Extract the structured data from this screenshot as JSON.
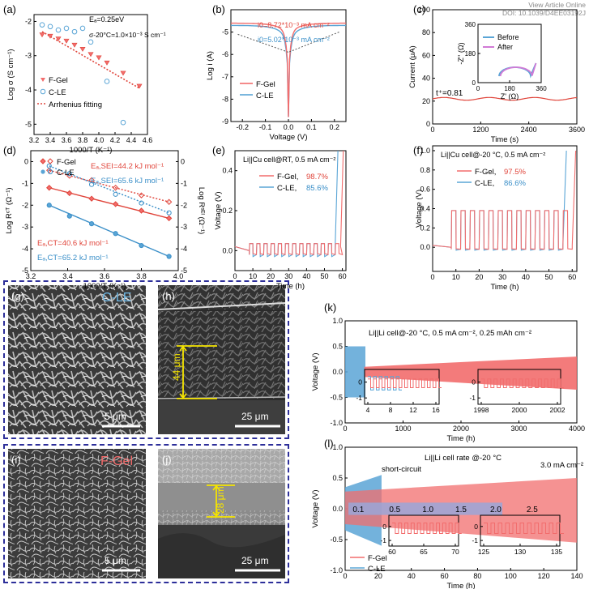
{
  "header": {
    "line1": "View Article Online",
    "line2": "DOI: 10.1039/D4EE03192J"
  },
  "colors": {
    "fgel": "#f26d6d",
    "cle": "#5aa5d6",
    "red_dark": "#e0443a",
    "blue_dark": "#3a8fc8",
    "frame": "#2d2f9a",
    "dash_red": "#e0443a"
  },
  "chart_data": [
    {
      "panel": "(a)",
      "type": "scatter",
      "xlabel": "1000/T (K⁻¹)",
      "ylabel": "Log σ (S cm⁻¹)",
      "xlim": [
        3.2,
        4.6
      ],
      "ylim": [
        -5.3,
        -1.8
      ],
      "xticks": [
        "3.2",
        "3.4",
        "3.6",
        "3.8",
        "4.0",
        "4.2",
        "4.4",
        "4.6"
      ],
      "yticks": [
        "-2",
        "-3",
        "-4",
        "-5"
      ],
      "series": [
        {
          "name": "F-Gel",
          "x": [
            3.3,
            3.4,
            3.5,
            3.6,
            3.7,
            3.8,
            3.9,
            4.0,
            4.1,
            4.3,
            4.5
          ],
          "y": [
            -2.38,
            -2.42,
            -2.5,
            -2.56,
            -2.68,
            -2.8,
            -2.95,
            -3.05,
            -3.2,
            -3.5,
            -3.88
          ]
        },
        {
          "name": "C-LE",
          "x": [
            3.3,
            3.4,
            3.5,
            3.6,
            3.7,
            3.8,
            3.9,
            4.1,
            4.3
          ],
          "y": [
            -2.1,
            -2.15,
            -2.25,
            -2.2,
            -2.3,
            -2.2,
            -2.6,
            -3.75,
            -4.95
          ]
        },
        {
          "name": "Arrhenius fitting",
          "x": [
            3.3,
            4.5
          ],
          "y": [
            -2.3,
            -3.95
          ]
        }
      ],
      "annotations": [
        "Eₐ=0.25eV",
        "σ-20°C=1.0×10⁻³ S cm⁻¹"
      ]
    },
    {
      "panel": "(b)",
      "type": "line",
      "xlabel": "Voltage (V)",
      "ylabel": "Log i (A)",
      "xlim": [
        -0.25,
        0.25
      ],
      "ylim": [
        -9,
        -4
      ],
      "xticks": [
        "-0.2",
        "-0.1",
        "0.0",
        "0.1",
        "0.2"
      ],
      "yticks": [
        "-5",
        "-6",
        "-7",
        "-8",
        "-9"
      ],
      "series": [
        {
          "name": "F-Gel"
        },
        {
          "name": "C-LE"
        }
      ],
      "annotations": [
        "i0=8.72*10⁻³ mA cm⁻²",
        "i0=5.02*10⁻³ mA cm⁻²"
      ]
    },
    {
      "panel": "(c)",
      "type": "line",
      "xlabel": "Time (s)",
      "ylabel": "Current (μA)",
      "xlim": [
        0,
        3600
      ],
      "ylim": [
        0,
        100
      ],
      "xticks": [
        "0",
        "1200",
        "2400",
        "3600"
      ],
      "yticks": [
        "0",
        "20",
        "40",
        "60",
        "80",
        "100"
      ],
      "series": [
        {
          "name": "current",
          "steady": 22
        }
      ],
      "annotations": [
        "t⁺=0.81"
      ],
      "inset": {
        "xlabel": "Z' (Ω)",
        "ylabel": "-Z'' (Ω)",
        "xticks": [
          "0",
          "180",
          "360"
        ],
        "yticks": [
          "0",
          "180",
          "360"
        ],
        "legend": [
          "Before",
          "After"
        ]
      }
    },
    {
      "panel": "(d)",
      "type": "line",
      "xlabel": "1000/T (K⁻¹)",
      "ylabel_left": "Log Rᶜᵀ (Ω⁻¹)",
      "ylabel_right": "Log Rˢᴱᴵ (Ω⁻¹)",
      "xlim": [
        3.2,
        4.0
      ],
      "ylim_left": [
        -5,
        0.5
      ],
      "ylim_right": [
        -5,
        0.5
      ],
      "xticks": [
        "3.2",
        "3.4",
        "3.6",
        "3.8",
        "4.0"
      ],
      "yticks_left": [
        "0",
        "-1",
        "-2",
        "-3",
        "-4",
        "-5"
      ],
      "yticks_right": [
        "0",
        "-1",
        "-2",
        "-3",
        "-4",
        "-5"
      ],
      "series": [
        {
          "name": "F-Gel",
          "x": [
            3.3,
            3.41,
            3.53,
            3.66,
            3.8,
            3.95
          ],
          "y": [
            -1.2,
            -1.45,
            -1.7,
            -1.95,
            -2.25,
            -2.6
          ]
        },
        {
          "name": "C-LE",
          "x": [
            3.3,
            3.41,
            3.53,
            3.66,
            3.8,
            3.95
          ],
          "y": [
            -2.0,
            -2.5,
            -2.85,
            -3.3,
            -3.85,
            -4.35
          ]
        },
        {
          "name": "F-Gel SEI",
          "x": [
            3.3,
            3.41,
            3.53,
            3.66,
            3.8,
            3.95
          ],
          "y": [
            -0.4,
            -0.65,
            -0.85,
            -1.2,
            -1.55,
            -1.85
          ]
        },
        {
          "name": "C-LE SEI",
          "x": [
            3.3,
            3.41,
            3.53,
            3.66,
            3.8,
            3.95
          ],
          "y": [
            -0.2,
            -0.55,
            -1.05,
            -1.5,
            -1.9,
            -2.35
          ]
        }
      ],
      "annotations": [
        "Eₐ,SEI=44.2 kJ mol⁻¹",
        "Eₐ,SEI=65.6 kJ mol⁻¹",
        "Eₐ,CT=40.6 kJ mol⁻¹",
        "Eₐ,CT=65.2 kJ mol⁻¹"
      ]
    },
    {
      "panel": "(e)",
      "type": "line",
      "title": "Li||Cu cell@RT, 0.5 mA cm⁻²",
      "xlabel": "Time (h)",
      "ylabel": "Voltage (V)",
      "xlim": [
        0,
        62
      ],
      "ylim": [
        -0.1,
        0.5
      ],
      "xticks": [
        "0",
        "10",
        "20",
        "30",
        "40",
        "50",
        "60"
      ],
      "yticks": [
        "0.0",
        "0.2",
        "0.4"
      ],
      "series": [
        {
          "name": "F-Gel",
          "efficiency": "98.7%"
        },
        {
          "name": "C-LE",
          "efficiency": "85.6%"
        }
      ]
    },
    {
      "panel": "(f)",
      "type": "line",
      "title": "Li||Cu cell@-20 °C, 0.5 mA cm⁻²",
      "xlabel": "Time (h)",
      "ylabel": "Voltage (V)",
      "xlim": [
        0,
        62
      ],
      "ylim": [
        -0.25,
        1.05
      ],
      "xticks": [
        "0",
        "10",
        "20",
        "30",
        "40",
        "50",
        "60"
      ],
      "yticks": [
        "0.0",
        "0.2",
        "0.4",
        "0.6",
        "0.8",
        "1.0"
      ],
      "series": [
        {
          "name": "F-Gel",
          "efficiency": "97.5%"
        },
        {
          "name": "C-LE",
          "efficiency": "86.6%"
        }
      ]
    },
    {
      "panel": "(k)",
      "type": "line",
      "title": "Li||Li cell@-20 °C, 0.5 mA cm⁻², 0.25 mAh cm⁻²",
      "xlabel": "Time (h)",
      "ylabel": "Voltage (V)",
      "xlim": [
        0,
        4000
      ],
      "ylim": [
        -1.0,
        1.0
      ],
      "xticks": [
        "0",
        "1000",
        "2000",
        "3000",
        "4000"
      ],
      "yticks": [
        "1.0",
        "0.5",
        "0.0",
        "-0.5",
        "-1.0"
      ],
      "inset1": {
        "xticks": [
          "4",
          "8",
          "12",
          "16"
        ],
        "yticks": [
          "0",
          "-1"
        ]
      },
      "inset2": {
        "xticks": [
          "1998",
          "2000",
          "2002"
        ],
        "yticks": [
          "0",
          "-1"
        ]
      }
    },
    {
      "panel": "(l)",
      "type": "line",
      "title": "Li||Li cell rate @-20 °C",
      "xlabel": "Time (h)",
      "ylabel": "Voltage (V)",
      "xlim": [
        0,
        140
      ],
      "ylim": [
        -1.0,
        1.0
      ],
      "xticks": [
        "0",
        "20",
        "40",
        "60",
        "80",
        "100",
        "120",
        "140"
      ],
      "yticks": [
        "1.0",
        "0.5",
        "0.0",
        "-0.5",
        "-1.0"
      ],
      "rates": [
        "0.1",
        "0.5",
        "1.0",
        "1.5",
        "2.0",
        "2.5"
      ],
      "annotations": [
        "short-circuit",
        "3.0 mA cm⁻²"
      ],
      "series": [
        {
          "name": "F-Gel"
        },
        {
          "name": "C-LE"
        }
      ],
      "inset1": {
        "xticks": [
          "60",
          "65",
          "70"
        ],
        "yticks": [
          "0",
          "-1"
        ]
      },
      "inset2": {
        "xticks": [
          "125",
          "130",
          "135"
        ],
        "yticks": [
          "0",
          "-1"
        ]
      }
    }
  ],
  "sem": {
    "g": {
      "label": "(g)",
      "tag": "C-LE",
      "scale": "5 μm"
    },
    "h": {
      "label": "(h)",
      "scale": "25 μm",
      "thickness": "44 μm"
    },
    "i": {
      "label": "(i)",
      "tag": "F-Gel",
      "scale": "5 μm"
    },
    "j": {
      "label": "(j)",
      "scale": "25 μm",
      "thickness": "28 μm"
    }
  }
}
